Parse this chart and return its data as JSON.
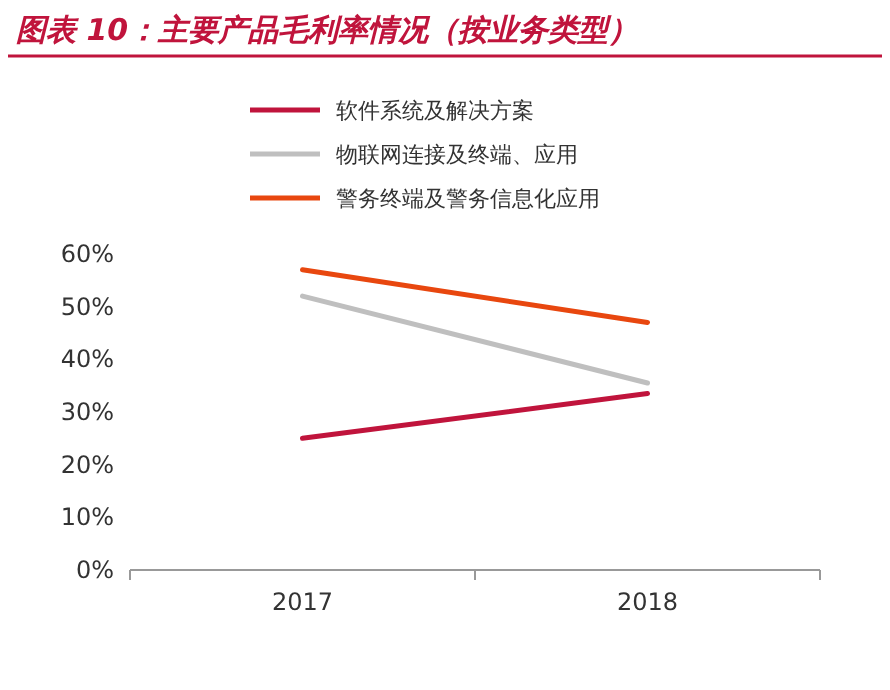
{
  "chart_data": {
    "type": "line",
    "title": "图表 10：主要产品毛利率情况（按业务类型）",
    "categories": [
      "2017",
      "2018"
    ],
    "series": [
      {
        "name": "软件系统及解决方案",
        "color": "#c0143c",
        "values": [
          25,
          33.5
        ]
      },
      {
        "name": "物联网连接及终端、应用",
        "color": "#bfbfbf",
        "values": [
          52,
          35.5
        ]
      },
      {
        "name": "警务终端及警务信息化应用",
        "color": "#e8470f",
        "values": [
          57,
          47
        ]
      }
    ],
    "ylim": [
      0,
      60
    ],
    "yticks": [
      {
        "value": 0,
        "label": "0%"
      },
      {
        "value": 10,
        "label": "10%"
      },
      {
        "value": 20,
        "label": "20%"
      },
      {
        "value": 30,
        "label": "30%"
      },
      {
        "value": 40,
        "label": "40%"
      },
      {
        "value": 50,
        "label": "50%"
      },
      {
        "value": 60,
        "label": "60%"
      }
    ],
    "legend": "top",
    "grid": false
  }
}
